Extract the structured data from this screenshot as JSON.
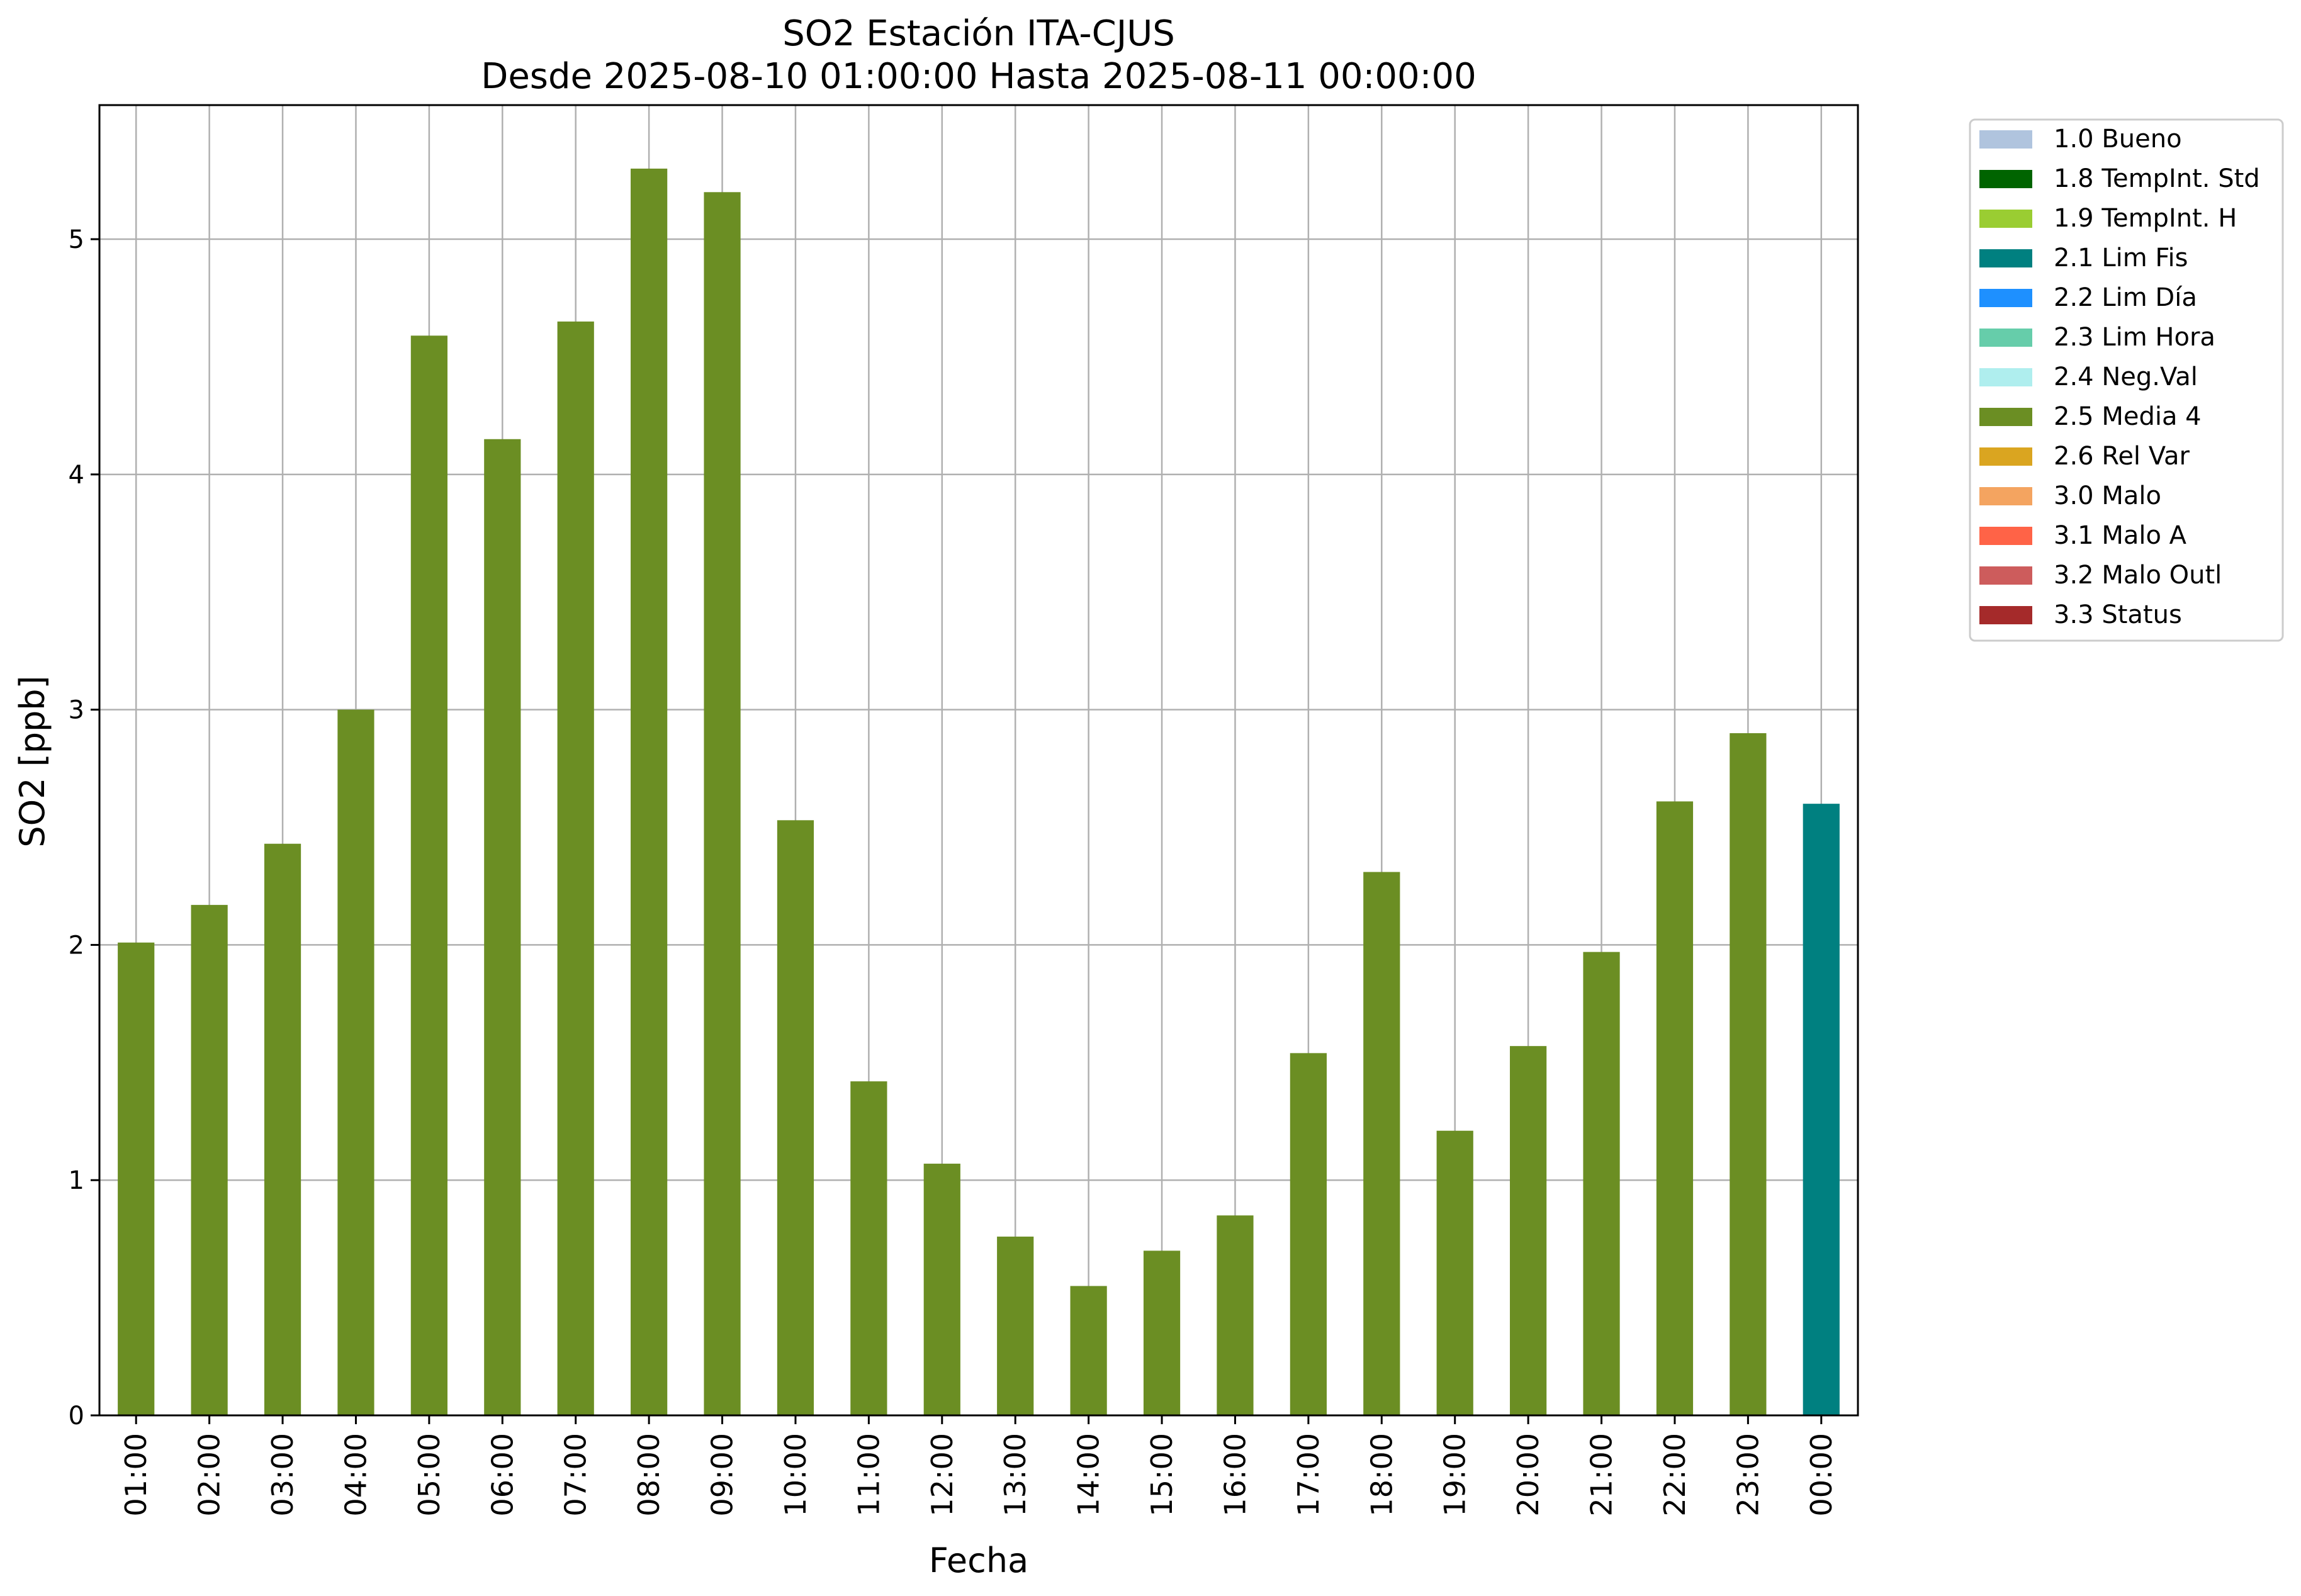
{
  "chart_data": {
    "type": "bar",
    "title": "SO2 Estación ITA-CJUS",
    "subtitle": "Desde 2025-08-10 01:00:00 Hasta 2025-08-11 00:00:00",
    "xlabel": "Fecha",
    "ylabel": "SO2 [ppb]",
    "ylim": [
      0,
      5.57
    ],
    "yticks": [
      0,
      1,
      2,
      3,
      4,
      5
    ],
    "grid": true,
    "legend_position": "outside-right",
    "categories": [
      "01:00",
      "02:00",
      "03:00",
      "04:00",
      "05:00",
      "06:00",
      "07:00",
      "08:00",
      "09:00",
      "10:00",
      "11:00",
      "12:00",
      "13:00",
      "14:00",
      "15:00",
      "16:00",
      "17:00",
      "18:00",
      "19:00",
      "20:00",
      "21:00",
      "22:00",
      "23:00",
      "00:00"
    ],
    "values": [
      2.01,
      2.17,
      2.43,
      3.0,
      4.59,
      4.15,
      4.65,
      5.3,
      5.2,
      2.53,
      1.42,
      1.07,
      0.76,
      0.55,
      0.7,
      0.85,
      1.54,
      2.31,
      1.21,
      1.57,
      1.97,
      2.61,
      2.9,
      2.6
    ],
    "flags": [
      "2.5 Media 4",
      "2.5 Media 4",
      "2.5 Media 4",
      "2.5 Media 4",
      "2.5 Media 4",
      "2.5 Media 4",
      "2.5 Media 4",
      "2.5 Media 4",
      "2.5 Media 4",
      "2.5 Media 4",
      "2.5 Media 4",
      "2.5 Media 4",
      "2.5 Media 4",
      "2.5 Media 4",
      "2.5 Media 4",
      "2.5 Media 4",
      "2.5 Media 4",
      "2.5 Media 4",
      "2.5 Media 4",
      "2.5 Media 4",
      "2.5 Media 4",
      "2.5 Media 4",
      "2.5 Media 4",
      "2.1 Lim Fis"
    ],
    "legend": [
      {
        "label": "1.0 Bueno",
        "color": "#b0c4de"
      },
      {
        "label": "1.8 TempInt. Std",
        "color": "#006400"
      },
      {
        "label": "1.9 TempInt. H",
        "color": "#9acd32"
      },
      {
        "label": "2.1 Lim Fis",
        "color": "#008080"
      },
      {
        "label": "2.2 Lim Día",
        "color": "#1e90ff"
      },
      {
        "label": "2.3 Lim Hora",
        "color": "#66cdaa"
      },
      {
        "label": "2.4 Neg.Val",
        "color": "#afeeee"
      },
      {
        "label": "2.5 Media 4",
        "color": "#6b8e23"
      },
      {
        "label": "2.6 Rel Var",
        "color": "#daa520"
      },
      {
        "label": "3.0 Malo",
        "color": "#f4a460"
      },
      {
        "label": "3.1 Malo A",
        "color": "#ff6347"
      },
      {
        "label": "3.2 Malo Outl",
        "color": "#cd5c5c"
      },
      {
        "label": "3.3 Status",
        "color": "#a52a2a"
      }
    ]
  }
}
